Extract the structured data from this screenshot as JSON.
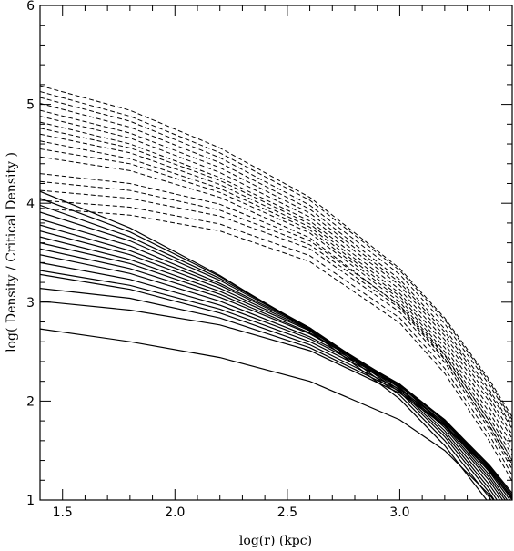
{
  "chart_data": {
    "type": "line",
    "title": "",
    "xlabel": "log(r) (kpc)",
    "ylabel": "log( Density / Critical Density )",
    "xlim": [
      1.4,
      3.5
    ],
    "ylim": [
      1,
      6
    ],
    "xticks": [
      1.5,
      2.0,
      2.5,
      3.0
    ],
    "xtick_labels": [
      "1.5",
      "2.0",
      "2.5",
      "3.0"
    ],
    "yticks": [
      1,
      2,
      3,
      4,
      5,
      6
    ],
    "ytick_labels": [
      "1",
      "2",
      "3",
      "4",
      "5",
      "6"
    ],
    "x_grid": [
      1.4,
      1.8,
      2.2,
      2.6,
      3.0,
      3.2,
      3.4,
      3.5
    ],
    "series": [
      {
        "style": "dashed",
        "values": [
          5.19,
          4.94,
          4.56,
          4.06,
          3.34,
          2.84,
          2.21,
          1.84
        ]
      },
      {
        "style": "dashed",
        "values": [
          5.13,
          4.88,
          4.51,
          4.03,
          3.32,
          2.82,
          2.19,
          1.81
        ]
      },
      {
        "style": "dashed",
        "values": [
          5.07,
          4.83,
          4.46,
          3.98,
          3.28,
          2.78,
          2.16,
          1.79
        ]
      },
      {
        "style": "dashed",
        "values": [
          5.01,
          4.77,
          4.41,
          3.94,
          3.23,
          2.73,
          2.11,
          1.74
        ]
      },
      {
        "style": "dashed",
        "values": [
          4.94,
          4.71,
          4.36,
          3.9,
          3.2,
          2.7,
          2.08,
          1.72
        ]
      },
      {
        "style": "dashed",
        "values": [
          4.88,
          4.66,
          4.31,
          3.86,
          3.17,
          2.66,
          2.03,
          1.66
        ]
      },
      {
        "style": "dashed",
        "values": [
          4.82,
          4.6,
          4.26,
          3.82,
          3.13,
          2.62,
          1.99,
          1.62
        ]
      },
      {
        "style": "dashed",
        "values": [
          4.76,
          4.56,
          4.23,
          3.79,
          3.09,
          2.58,
          1.93,
          1.56
        ]
      },
      {
        "style": "dashed",
        "values": [
          4.7,
          4.51,
          4.19,
          3.76,
          3.06,
          2.54,
          1.88,
          1.5
        ]
      },
      {
        "style": "dashed",
        "values": [
          4.63,
          4.45,
          4.15,
          3.73,
          3.03,
          2.5,
          1.83,
          1.45
        ]
      },
      {
        "style": "dashed",
        "values": [
          4.55,
          4.4,
          4.11,
          3.7,
          3.0,
          2.47,
          1.79,
          1.4
        ]
      },
      {
        "style": "dashed",
        "values": [
          4.47,
          4.33,
          4.06,
          3.65,
          2.96,
          2.43,
          1.74,
          1.35
        ]
      },
      {
        "style": "dashed",
        "values": [
          4.3,
          4.2,
          3.99,
          3.62,
          2.97,
          2.46,
          1.79,
          1.4
        ]
      },
      {
        "style": "dashed",
        "values": [
          4.22,
          4.13,
          3.93,
          3.58,
          2.94,
          2.42,
          1.75,
          1.36
        ]
      },
      {
        "style": "dashed",
        "values": [
          4.13,
          4.05,
          3.87,
          3.54,
          2.9,
          2.39,
          1.71,
          1.31
        ]
      },
      {
        "style": "dashed",
        "values": [
          4.03,
          3.96,
          3.79,
          3.47,
          2.84,
          2.33,
          1.65,
          1.25
        ]
      },
      {
        "style": "dashed",
        "values": [
          3.95,
          3.88,
          3.72,
          3.41,
          2.79,
          2.28,
          1.59,
          1.19
        ]
      },
      {
        "style": "solid",
        "values": [
          4.12,
          3.75,
          3.27,
          2.71,
          2.02,
          1.55,
          0.96,
          0.6
        ]
      },
      {
        "style": "solid",
        "values": [
          4.05,
          3.71,
          3.26,
          2.73,
          2.06,
          1.6,
          1.02,
          0.67
        ]
      },
      {
        "style": "solid",
        "values": [
          3.98,
          3.66,
          3.24,
          2.74,
          2.09,
          1.64,
          1.07,
          0.72
        ]
      },
      {
        "style": "solid",
        "values": [
          3.91,
          3.62,
          3.22,
          2.74,
          2.11,
          1.67,
          1.11,
          0.77
        ]
      },
      {
        "style": "solid",
        "values": [
          3.84,
          3.57,
          3.19,
          2.74,
          2.13,
          1.7,
          1.15,
          0.82
        ]
      },
      {
        "style": "solid",
        "values": [
          3.78,
          3.52,
          3.17,
          2.73,
          2.14,
          1.73,
          1.19,
          0.86
        ]
      },
      {
        "style": "solid",
        "values": [
          3.72,
          3.48,
          3.14,
          2.72,
          2.16,
          1.75,
          1.22,
          0.9
        ]
      },
      {
        "style": "solid",
        "values": [
          3.66,
          3.43,
          3.11,
          2.71,
          2.16,
          1.77,
          1.25,
          0.93
        ]
      },
      {
        "style": "solid",
        "values": [
          3.6,
          3.39,
          3.08,
          2.69,
          2.17,
          1.79,
          1.28,
          0.97
        ]
      },
      {
        "style": "solid",
        "values": [
          3.54,
          3.34,
          3.05,
          2.68,
          2.17,
          1.8,
          1.3,
          1.0
        ]
      },
      {
        "style": "solid",
        "values": [
          3.48,
          3.29,
          3.01,
          2.65,
          2.17,
          1.81,
          1.32,
          1.02
        ]
      },
      {
        "style": "solid",
        "values": [
          3.4,
          3.23,
          2.97,
          2.63,
          2.16,
          1.81,
          1.34,
          1.05
        ]
      },
      {
        "style": "solid",
        "values": [
          3.32,
          3.17,
          2.93,
          2.6,
          2.15,
          1.81,
          1.35,
          1.07
        ]
      },
      {
        "style": "solid",
        "values": [
          3.28,
          3.13,
          2.89,
          2.57,
          2.12,
          1.78,
          1.33,
          1.05
        ]
      },
      {
        "style": "solid",
        "values": [
          3.14,
          3.04,
          2.84,
          2.54,
          2.1,
          1.76,
          1.31,
          1.03
        ]
      },
      {
        "style": "solid",
        "values": [
          3.01,
          2.92,
          2.77,
          2.51,
          2.08,
          1.75,
          1.29,
          1.01
        ]
      },
      {
        "style": "solid",
        "values": [
          2.73,
          2.6,
          2.44,
          2.2,
          1.81,
          1.5,
          1.05,
          0.75
        ]
      }
    ]
  }
}
